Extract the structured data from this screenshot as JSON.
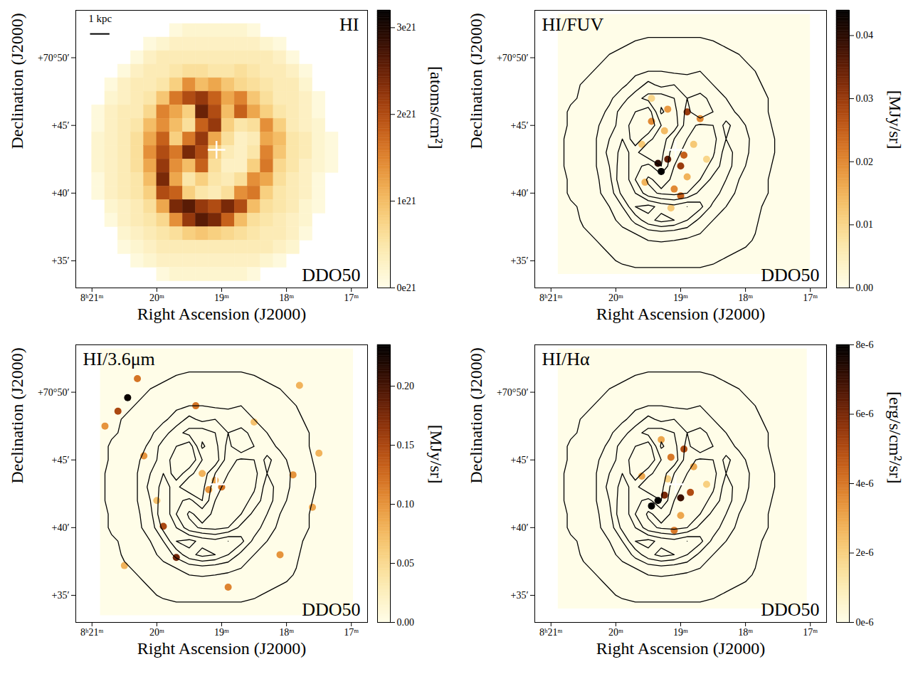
{
  "chart_data": [
    {
      "type": "heatmap",
      "title": "HI",
      "annotation": "DDO50",
      "x_label": "Right Ascension (J2000)",
      "y_label": "Declination (J2000)",
      "xlim": [
        501.25,
        496.75
      ],
      "xticks": [
        {
          "value": 501,
          "label": "8ʰ21ᵐ"
        },
        {
          "value": 500,
          "label": "20ᵐ"
        },
        {
          "value": 499,
          "label": "19ᵐ"
        },
        {
          "value": 498,
          "label": "18ᵐ"
        },
        {
          "value": 497,
          "label": "17ᵐ"
        }
      ],
      "ylim": [
        33,
        53.5
      ],
      "yticks": [
        {
          "value": 35,
          "label": "+35′"
        },
        {
          "value": 40,
          "label": "+40′"
        },
        {
          "value": 45,
          "label": "+45′"
        },
        {
          "value": 50,
          "label": "+70°50′"
        }
      ],
      "center": {
        "ra": 499.08,
        "dec": 43.2,
        "marker": "plus"
      },
      "scale_bar": {
        "label": "1 kpc",
        "length": 0.3
      },
      "colorbar": {
        "label": "[atoms/cm²]",
        "lim": [
          0,
          3.2e+21
        ],
        "ticks": [
          {
            "value": 0,
            "label": "0e21"
          },
          {
            "value": 1e+21,
            "label": "1e21"
          },
          {
            "value": 2e+21,
            "label": "2e21"
          },
          {
            "value": 3e+21,
            "label": "3e21"
          }
        ]
      },
      "cells": {
        "ra": [
          500.9,
          500.7,
          500.5,
          500.3,
          500.1,
          499.9,
          499.7,
          499.5,
          499.3,
          499.1,
          498.9,
          498.7,
          498.5,
          498.3,
          498.1,
          497.9,
          497.7,
          497.5,
          497.3
        ],
        "dec": [
          52,
          51,
          50,
          49,
          48,
          47,
          46,
          45,
          44,
          43,
          42,
          41,
          40,
          39,
          38,
          37,
          36,
          35,
          34
        ],
        "values": [
          [
            0,
            0,
            0,
            0,
            0,
            0,
            1e+20,
            2e+20,
            2e+20,
            2e+20,
            2e+20,
            2e+20,
            1e+20,
            0,
            0,
            0,
            0,
            0,
            0
          ],
          [
            0,
            0,
            0,
            0,
            1e+20,
            2e+20,
            3e+20,
            3e+20,
            3e+20,
            3e+20,
            3e+20,
            3e+20,
            3e+20,
            2e+20,
            1e+20,
            0,
            0,
            0,
            0
          ],
          [
            0,
            0,
            0,
            1e+20,
            3e+20,
            4e+20,
            4e+20,
            4e+20,
            4e+20,
            4e+20,
            4e+20,
            4e+20,
            4e+20,
            4e+20,
            3e+20,
            1e+20,
            0,
            0,
            0
          ],
          [
            0,
            0,
            1e+20,
            3e+20,
            4e+20,
            4e+20,
            5e+20,
            6e+20,
            6e+20,
            5e+20,
            5e+20,
            6e+20,
            5e+20,
            4e+20,
            4e+20,
            3e+20,
            1e+20,
            0,
            0
          ],
          [
            0,
            1e+20,
            3e+20,
            4e+20,
            4e+20,
            5e+20,
            8e+20,
            1.4e+21,
            1e+21,
            1.2e+21,
            9e+20,
            7e+20,
            6e+20,
            5e+20,
            4e+20,
            4e+20,
            2e+20,
            0,
            0
          ],
          [
            0,
            2e+20,
            3e+20,
            4e+20,
            5e+20,
            9e+20,
            1.6e+21,
            2e+21,
            2.2e+21,
            1.8e+21,
            1.2e+21,
            1.5e+21,
            9e+20,
            6e+20,
            4e+20,
            4e+20,
            3e+20,
            1e+20,
            0
          ],
          [
            1e+20,
            3e+20,
            4e+20,
            4e+20,
            7e+20,
            1.5e+21,
            1.2e+21,
            8e+20,
            2.5e+21,
            2e+21,
            1e+21,
            1.8e+21,
            1.2e+21,
            8e+20,
            5e+20,
            4e+20,
            3e+20,
            1e+20,
            0
          ],
          [
            1e+20,
            3e+20,
            4e+20,
            5e+20,
            1e+21,
            1.4e+21,
            1e+21,
            6e+20,
            1.8e+21,
            2.2e+21,
            8e+20,
            5e+20,
            6e+20,
            1.4e+21,
            8e+20,
            4e+20,
            3e+20,
            2e+20,
            0
          ],
          [
            2e+20,
            3e+20,
            4e+20,
            6e+20,
            1.2e+21,
            1.8e+21,
            8e+20,
            1.6e+21,
            2.2e+21,
            1.2e+21,
            6e+20,
            3e+20,
            4e+20,
            1.2e+21,
            1e+21,
            5e+20,
            4e+20,
            2e+20,
            1e+20
          ],
          [
            2e+20,
            3e+20,
            4e+20,
            6e+20,
            1.4e+21,
            2e+21,
            1.6e+21,
            2.4e+21,
            2e+21,
            8e+20,
            4e+20,
            3e+20,
            5e+20,
            1.5e+21,
            9e+20,
            5e+20,
            4e+20,
            2e+20,
            1e+20
          ],
          [
            2e+20,
            3e+20,
            4e+20,
            6e+20,
            1.2e+21,
            2.2e+21,
            1.4e+21,
            1e+21,
            1.8e+21,
            6e+20,
            3e+20,
            3e+20,
            8e+20,
            1.6e+21,
            7e+20,
            5e+20,
            3e+20,
            2e+20,
            1e+20
          ],
          [
            1e+20,
            3e+20,
            4e+20,
            5e+20,
            1e+21,
            2.4e+21,
            1.2e+21,
            5e+20,
            8e+20,
            5e+20,
            4e+20,
            6e+20,
            1.4e+21,
            1.2e+21,
            6e+20,
            4e+20,
            3e+20,
            1e+20,
            0
          ],
          [
            1e+20,
            3e+20,
            4e+20,
            5e+20,
            8e+20,
            2e+21,
            1.8e+21,
            8e+20,
            5e+20,
            4e+20,
            6e+20,
            1.4e+21,
            1.6e+21,
            8e+20,
            5e+20,
            4e+20,
            3e+20,
            1e+20,
            0
          ],
          [
            0,
            2e+20,
            3e+20,
            4e+20,
            6e+20,
            1.2e+21,
            2.4e+21,
            2.6e+21,
            2.2e+21,
            2e+21,
            2.4e+21,
            2e+21,
            1e+21,
            6e+20,
            5e+20,
            4e+20,
            2e+20,
            1e+20,
            0
          ],
          [
            0,
            1e+20,
            3e+20,
            4e+20,
            5e+20,
            7e+20,
            1.4e+21,
            2.2e+21,
            2.6e+21,
            2.4e+21,
            1.8e+21,
            1e+21,
            6e+20,
            5e+20,
            4e+20,
            3e+20,
            2e+20,
            0,
            0
          ],
          [
            0,
            0,
            2e+20,
            3e+20,
            4e+20,
            5e+20,
            6e+20,
            8e+20,
            9e+20,
            8e+20,
            7e+20,
            6e+20,
            5e+20,
            4e+20,
            4e+20,
            3e+20,
            1e+20,
            0,
            0
          ],
          [
            0,
            0,
            1e+20,
            2e+20,
            3e+20,
            4e+20,
            4e+20,
            4e+20,
            4e+20,
            4e+20,
            4e+20,
            4e+20,
            4e+20,
            4e+20,
            3e+20,
            2e+20,
            0,
            0,
            0
          ],
          [
            0,
            0,
            0,
            1e+20,
            2e+20,
            3e+20,
            3e+20,
            3e+20,
            3e+20,
            3e+20,
            3e+20,
            3e+20,
            3e+20,
            2e+20,
            1e+20,
            0,
            0,
            0,
            0
          ],
          [
            0,
            0,
            0,
            0,
            0,
            1e+20,
            2e+20,
            2e+20,
            2e+20,
            2e+20,
            2e+20,
            2e+20,
            1e+20,
            0,
            0,
            0,
            0,
            0,
            0
          ]
        ]
      }
    },
    {
      "type": "contour",
      "title": "HI/FUV",
      "annotation": "DDO50",
      "x_label": "Right Ascension (J2000)",
      "y_label": "Declination (J2000)",
      "xlim": [
        501.25,
        496.75
      ],
      "xticks": [
        {
          "value": 501,
          "label": "8ʰ21ᵐ"
        },
        {
          "value": 500,
          "label": "20ᵐ"
        },
        {
          "value": 499,
          "label": "19ᵐ"
        },
        {
          "value": 498,
          "label": "18ᵐ"
        },
        {
          "value": 497,
          "label": "17ᵐ"
        }
      ],
      "ylim": [
        33,
        53.5
      ],
      "yticks": [
        {
          "value": 35,
          "label": "+35′"
        },
        {
          "value": 40,
          "label": "+40′"
        },
        {
          "value": 45,
          "label": "+45′"
        },
        {
          "value": 50,
          "label": "+70°50′"
        }
      ],
      "center": {
        "ra": 499.08,
        "dec": 43.2,
        "marker": "plus"
      },
      "contour_levels": [
        2.5e+20,
        6e+20,
        1.2e+21,
        1.8e+21,
        2.4e+21
      ],
      "coverage": {
        "ra": [
          500.89,
          497.0
        ],
        "dec": [
          34.0,
          53.2
        ]
      },
      "colorbar": {
        "label": "[MJy/sr]",
        "lim": [
          0,
          0.044
        ],
        "ticks": [
          {
            "value": 0,
            "label": "0.00"
          },
          0.01,
          0.02,
          0.03,
          0.04
        ]
      },
      "sources": {
        "ra": [
          499.35,
          499.2,
          499.0,
          499.3,
          498.95,
          499.45,
          499.2,
          498.9,
          498.7,
          499.1,
          499.0,
          498.9,
          499.6,
          498.6,
          499.55,
          498.8,
          499.25,
          499.45,
          499.15
        ],
        "dec": [
          42.2,
          42.5,
          42.0,
          41.6,
          42.8,
          45.3,
          46.2,
          46.0,
          45.5,
          40.3,
          39.8,
          41.2,
          43.6,
          42.5,
          40.8,
          43.6,
          44.6,
          47.0,
          38.9
        ],
        "values": [
          0.04,
          0.035,
          0.03,
          0.044,
          0.025,
          0.02,
          0.018,
          0.03,
          0.02,
          0.02,
          0.025,
          0.015,
          0.012,
          0.01,
          0.015,
          0.012,
          0.014,
          0.01,
          0.012
        ]
      }
    },
    {
      "type": "contour",
      "title": "HI/3.6μm",
      "annotation": "DDO50",
      "x_label": "Right Ascension (J2000)",
      "y_label": "Declination (J2000)",
      "xlim": [
        501.25,
        496.75
      ],
      "xticks": [
        {
          "value": 501,
          "label": "8ʰ21ᵐ"
        },
        {
          "value": 500,
          "label": "20ᵐ"
        },
        {
          "value": 499,
          "label": "19ᵐ"
        },
        {
          "value": 498,
          "label": "18ᵐ"
        },
        {
          "value": 497,
          "label": "17ᵐ"
        }
      ],
      "ylim": [
        33,
        53.5
      ],
      "yticks": [
        {
          "value": 35,
          "label": "+35′"
        },
        {
          "value": 40,
          "label": "+40′"
        },
        {
          "value": 45,
          "label": "+45′"
        },
        {
          "value": 50,
          "label": "+70°50′"
        }
      ],
      "center": {
        "ra": 499.08,
        "dec": 43.2,
        "marker": "plus"
      },
      "contour_levels": [
        2.5e+20,
        6e+20,
        1.2e+21,
        1.8e+21,
        2.4e+21
      ],
      "coverage": {
        "ra": [
          500.87,
          496.97
        ],
        "dec": [
          33.5,
          53.2
        ]
      },
      "colorbar": {
        "label": "[MJy/sr]",
        "lim": [
          0,
          0.235
        ],
        "ticks": [
          {
            "value": 0,
            "label": "0.00"
          },
          0.05,
          {
            "value": 0.1,
            "label": "0.10"
          },
          0.15,
          {
            "value": 0.2,
            "label": "0.20"
          }
        ]
      },
      "sources": {
        "ra": [
          499.1,
          499.0,
          499.2,
          499.3,
          500.45,
          500.6,
          500.3,
          500.8,
          497.8,
          499.9,
          499.7,
          500.2,
          497.6,
          498.1,
          500.5,
          499.4,
          498.5,
          497.5,
          498.9,
          500.0,
          497.9
        ],
        "dec": [
          43.5,
          43.0,
          42.8,
          44.0,
          49.6,
          48.6,
          51.0,
          47.5,
          50.5,
          40.1,
          37.8,
          45.3,
          41.5,
          38.0,
          37.2,
          49.0,
          47.8,
          45.5,
          35.6,
          42.0,
          43.9
        ],
        "values": [
          0.09,
          0.12,
          0.1,
          0.08,
          0.23,
          0.15,
          0.12,
          0.1,
          0.08,
          0.15,
          0.18,
          0.1,
          0.09,
          0.1,
          0.08,
          0.12,
          0.07,
          0.08,
          0.11,
          0.07,
          0.1
        ]
      }
    },
    {
      "type": "contour",
      "title": "HI/Hα",
      "annotation": "DDO50",
      "x_label": "Right Ascension (J2000)",
      "y_label": "Declination (J2000)",
      "xlim": [
        501.25,
        496.75
      ],
      "xticks": [
        {
          "value": 501,
          "label": "8ʰ21ᵐ"
        },
        {
          "value": 500,
          "label": "20ᵐ"
        },
        {
          "value": 499,
          "label": "19ᵐ"
        },
        {
          "value": 498,
          "label": "18ᵐ"
        },
        {
          "value": 497,
          "label": "17ᵐ"
        }
      ],
      "ylim": [
        33,
        53.5
      ],
      "yticks": [
        {
          "value": 35,
          "label": "+35′"
        },
        {
          "value": 40,
          "label": "+40′"
        },
        {
          "value": 45,
          "label": "+45′"
        },
        {
          "value": 50,
          "label": "+70°50′"
        }
      ],
      "center": {
        "ra": 499.08,
        "dec": 43.2,
        "marker": "plus"
      },
      "contour_levels": [
        2.5e+20,
        6e+20,
        1.2e+21,
        1.8e+21,
        2.4e+21
      ],
      "coverage": {
        "ra": [
          500.89,
          497.05
        ],
        "dec": [
          34.0,
          53.2
        ]
      },
      "colorbar": {
        "label": "[erg/s/cm²/sr]",
        "lim": [
          0,
          8e-06
        ],
        "ticks": [
          {
            "value": 0,
            "label": "0e-6"
          },
          {
            "value": 2e-06,
            "label": "2e-6"
          },
          {
            "value": 4e-06,
            "label": "4e-6"
          },
          {
            "value": 6e-06,
            "label": "6e-6"
          },
          {
            "value": 8e-06,
            "label": "8e-6"
          }
        ]
      },
      "sources": {
        "ra": [
          499.35,
          499.25,
          499.0,
          498.85,
          499.45,
          499.15,
          498.95,
          499.3,
          499.1,
          498.8,
          499.6,
          499.2,
          498.6,
          499.0
        ],
        "dec": [
          42.0,
          42.4,
          42.2,
          42.6,
          41.6,
          45.2,
          45.8,
          46.5,
          39.8,
          44.5,
          43.8,
          43.6,
          43.2,
          40.9
        ],
        "values": [
          8e-06,
          6e-06,
          7e-06,
          5e-06,
          8e-06,
          4e-06,
          5e-06,
          3e-06,
          4e-06,
          3e-06,
          3e-06,
          2e-06,
          2e-06,
          3e-06
        ]
      }
    }
  ]
}
